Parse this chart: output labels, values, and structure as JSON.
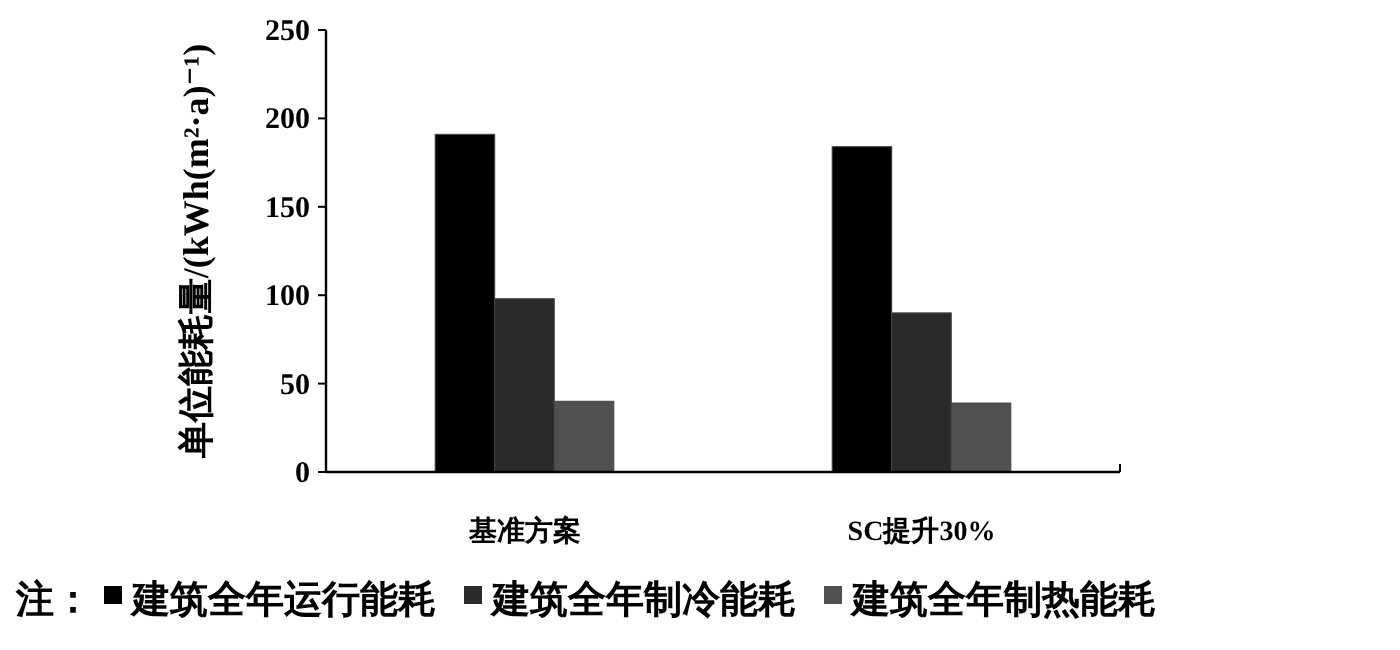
{
  "chart_data": {
    "type": "bar",
    "ylabel": "单位能耗量/(kWh(m²·a)⁻¹)",
    "legend_title": "注：",
    "categories": [
      "基准方案",
      "SC提升30%"
    ],
    "series": [
      {
        "name": "建筑全年运行能耗",
        "color": "#000000",
        "values": [
          191,
          184
        ]
      },
      {
        "name": "建筑全年制冷能耗",
        "color": "#2a2a2a",
        "values": [
          98,
          90
        ]
      },
      {
        "name": "建筑全年制热能耗",
        "color": "#505050",
        "values": [
          40,
          39
        ]
      }
    ],
    "ylim": [
      0,
      250
    ],
    "yticks": [
      0,
      50,
      100,
      150,
      200,
      250
    ],
    "grid": false,
    "legend": "bottom"
  }
}
